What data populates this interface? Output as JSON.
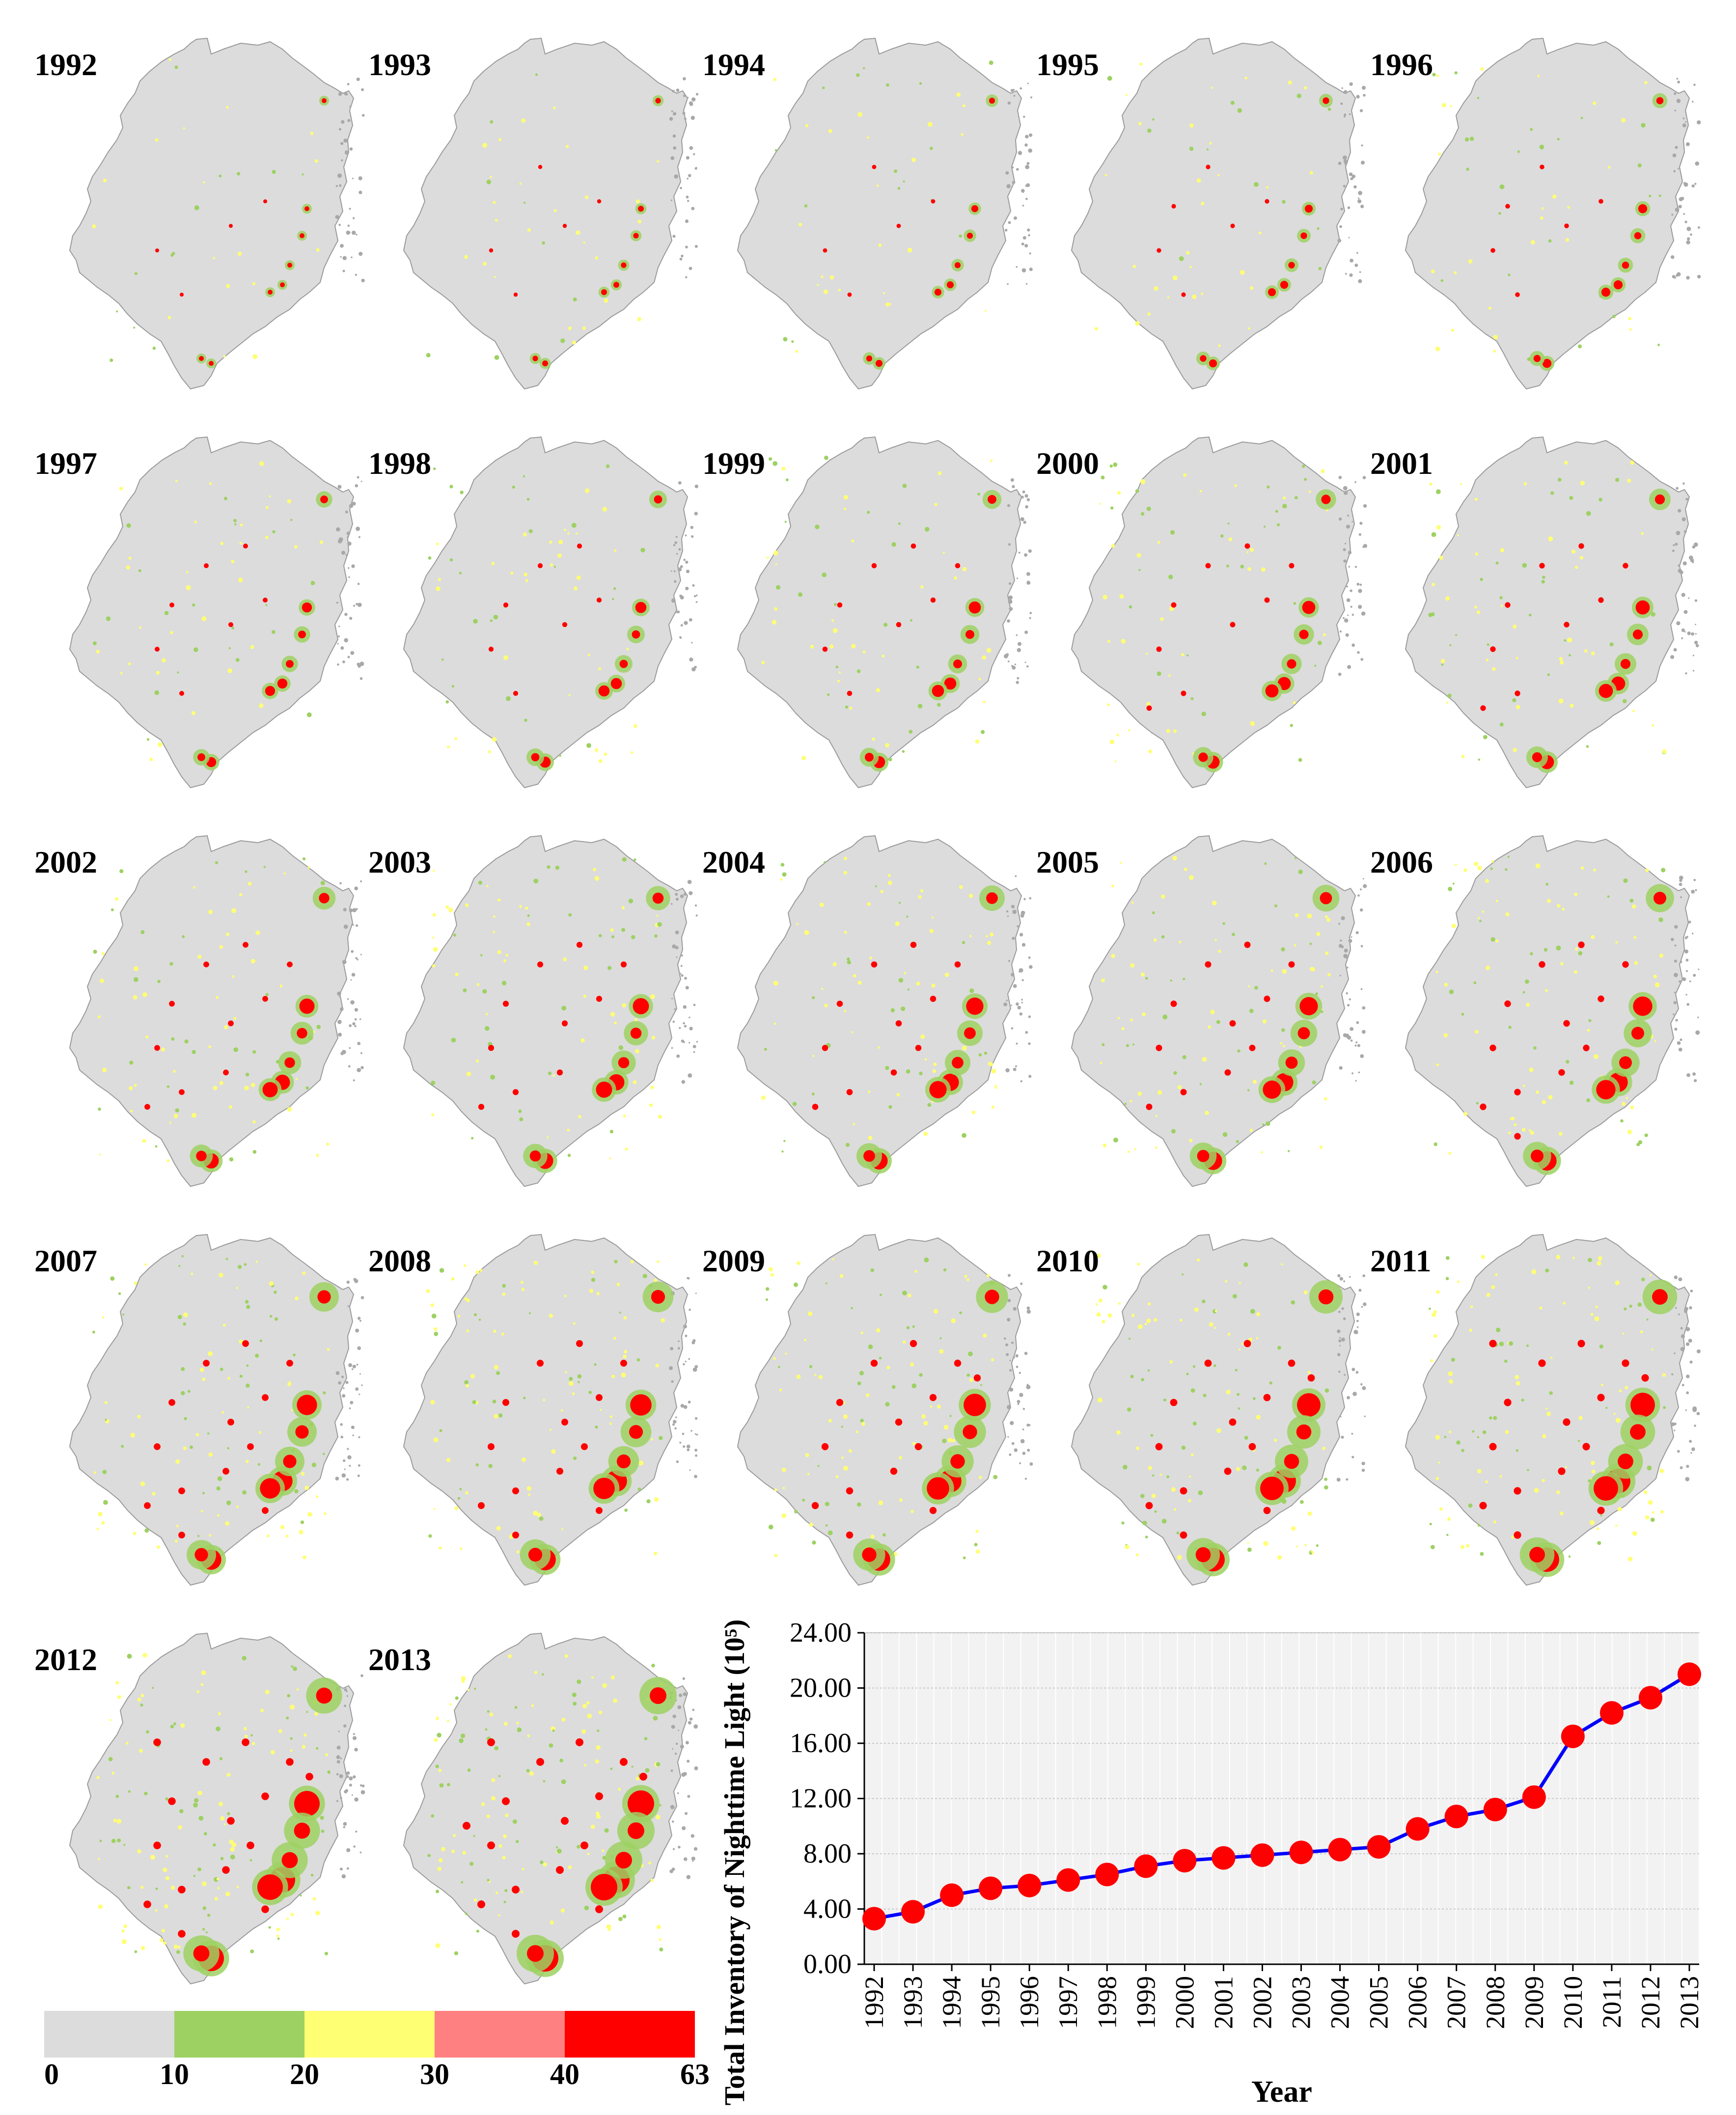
{
  "maps": {
    "years": [
      "1992",
      "1993",
      "1994",
      "1995",
      "1996",
      "1997",
      "1998",
      "1999",
      "2000",
      "2001",
      "2002",
      "2003",
      "2004",
      "2005",
      "2006",
      "2007",
      "2008",
      "2009",
      "2010",
      "2011",
      "2012",
      "2013"
    ],
    "colors": {
      "base": "#dcdcdc",
      "outline": "#9a9a9a",
      "islands": "#a8a8a8"
    }
  },
  "legend": {
    "bins": [
      {
        "from": 0,
        "to": 10,
        "color": "#dcdcdc"
      },
      {
        "from": 10,
        "to": 20,
        "color": "#9dd162"
      },
      {
        "from": 20,
        "to": 30,
        "color": "#ffff73"
      },
      {
        "from": 30,
        "to": 40,
        "color": "#ff8080"
      },
      {
        "from": 40,
        "to": 63,
        "color": "#ff0000"
      }
    ],
    "ticks": [
      "0",
      "10",
      "20",
      "30",
      "40",
      "63"
    ]
  },
  "chart_data": {
    "type": "line",
    "x": [
      "1992",
      "1993",
      "1994",
      "1995",
      "1996",
      "1997",
      "1998",
      "1999",
      "2000",
      "2001",
      "2002",
      "2003",
      "2004",
      "2005",
      "2006",
      "2007",
      "2008",
      "2009",
      "2010",
      "2011",
      "2012",
      "2013"
    ],
    "series": [
      {
        "values": [
          3.3,
          3.8,
          5.0,
          5.5,
          5.7,
          6.1,
          6.5,
          7.1,
          7.5,
          7.7,
          7.9,
          8.1,
          8.3,
          8.5,
          9.8,
          10.7,
          11.2,
          12.1,
          16.5,
          18.2,
          19.3,
          21.0
        ],
        "line_color": "#0000ff",
        "marker_color": "#ff0000"
      }
    ],
    "xlabel": "Year",
    "ylabel": "Total Inventory of Nighttime Light (10⁵)",
    "yticks": [
      "0.00",
      "4.00",
      "8.00",
      "12.00",
      "16.00",
      "20.00",
      "24.00"
    ],
    "ylim": [
      0,
      24
    ],
    "grid": true,
    "legend": "none"
  }
}
